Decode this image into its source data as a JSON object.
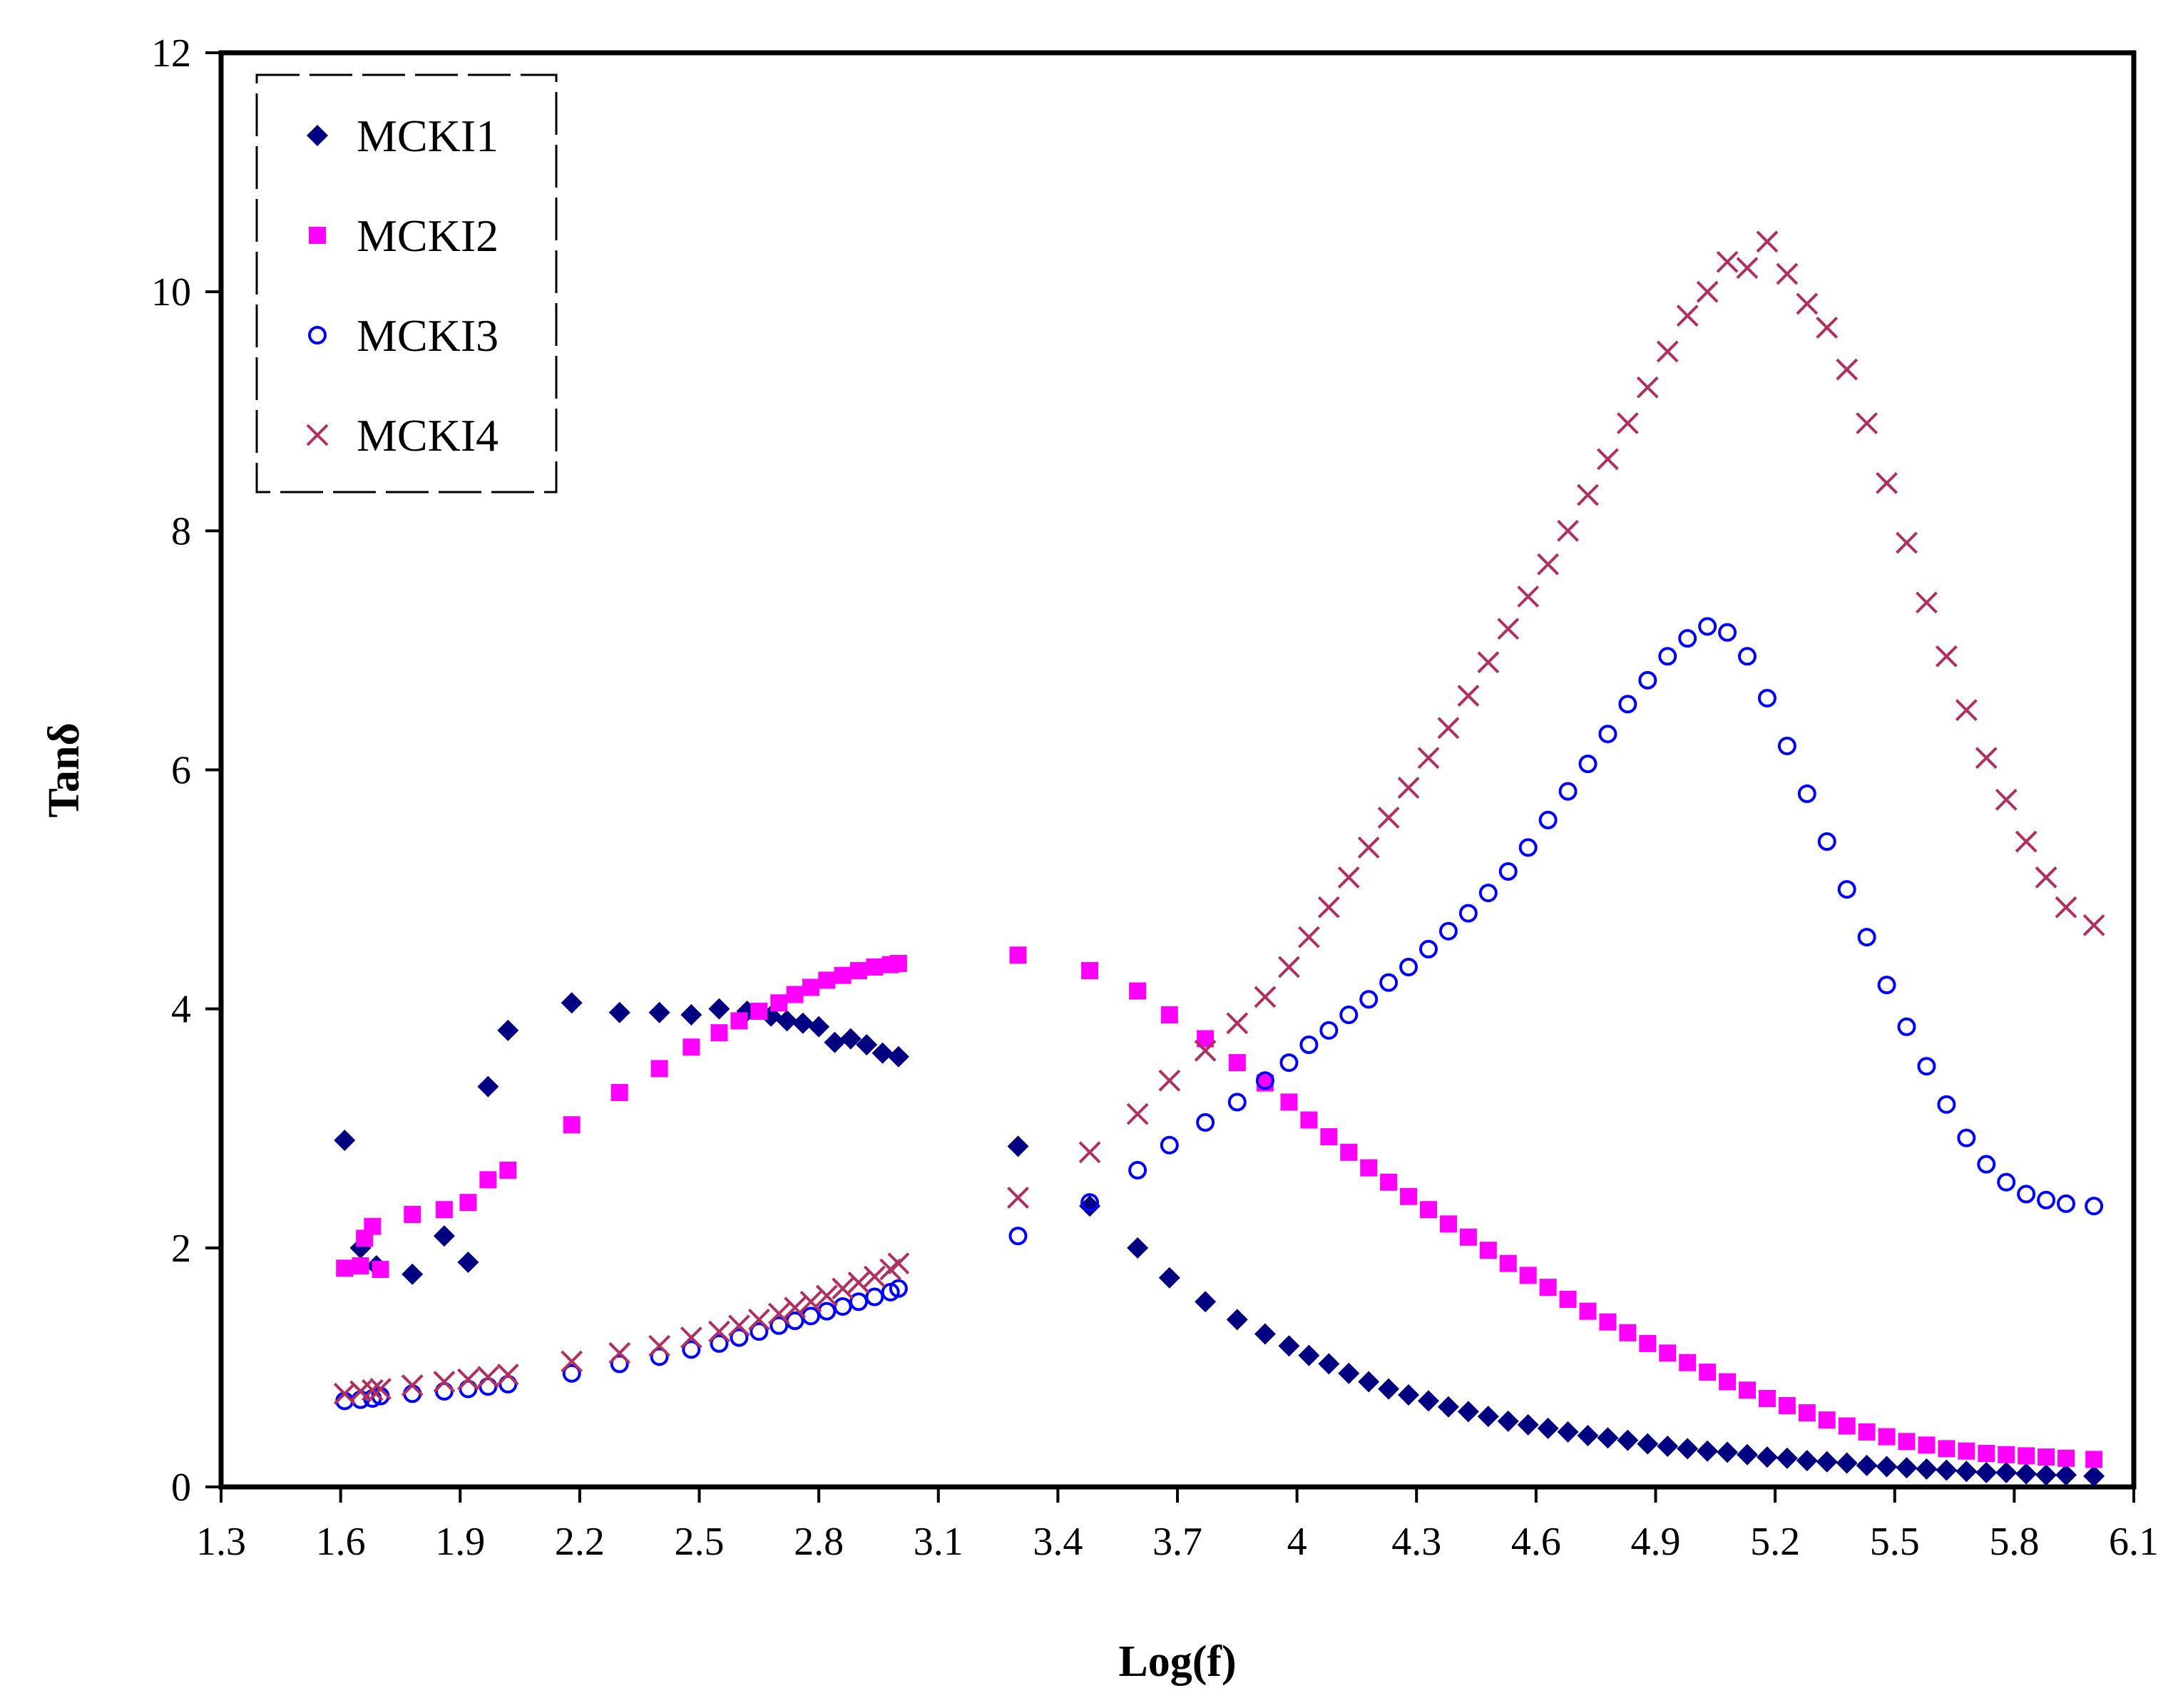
{
  "chart_data": {
    "type": "scatter",
    "title": "",
    "xlabel": "Log(f)",
    "ylabel": "Tanδ",
    "xlim": [
      1.3,
      6.1
    ],
    "ylim": [
      0,
      12
    ],
    "x_ticks": [
      1.3,
      1.6,
      1.9,
      2.2,
      2.5,
      2.8,
      3.1,
      3.4,
      3.7,
      4,
      4.3,
      4.6,
      4.9,
      5.2,
      5.5,
      5.8,
      6.1
    ],
    "x_tick_labels": [
      "1.3",
      "1.6",
      "1.9",
      "2.2",
      "2.5",
      "2.8",
      "3.1",
      "3.4",
      "3.7",
      "4",
      "4.3",
      "4.6",
      "4.9",
      "5.2",
      "5.5",
      "5.8",
      "6.1"
    ],
    "y_ticks": [
      0,
      2,
      4,
      6,
      8,
      10,
      12
    ],
    "y_tick_labels": [
      "0",
      "2",
      "4",
      "6",
      "8",
      "10",
      "12"
    ],
    "grid": false,
    "legend_position": "top-left",
    "series": [
      {
        "name": "MCKI1",
        "marker": "diamond",
        "color": "#000080",
        "points": [
          [
            1.61,
            2.9
          ],
          [
            1.65,
            2.0
          ],
          [
            1.69,
            1.85
          ],
          [
            1.78,
            1.78
          ],
          [
            1.86,
            2.1
          ],
          [
            1.92,
            1.88
          ],
          [
            1.97,
            3.35
          ],
          [
            2.02,
            3.82
          ],
          [
            2.18,
            4.05
          ],
          [
            2.3,
            3.97
          ],
          [
            2.4,
            3.97
          ],
          [
            2.48,
            3.95
          ],
          [
            2.55,
            4.0
          ],
          [
            2.62,
            3.98
          ],
          [
            2.68,
            3.94
          ],
          [
            2.72,
            3.9
          ],
          [
            2.76,
            3.88
          ],
          [
            2.8,
            3.85
          ],
          [
            2.84,
            3.72
          ],
          [
            2.88,
            3.75
          ],
          [
            2.92,
            3.7
          ],
          [
            2.96,
            3.63
          ],
          [
            3.0,
            3.6
          ],
          [
            3.3,
            2.85
          ],
          [
            3.48,
            2.35
          ],
          [
            3.6,
            2.0
          ],
          [
            3.68,
            1.75
          ],
          [
            3.77,
            1.55
          ],
          [
            3.85,
            1.4
          ],
          [
            3.92,
            1.28
          ],
          [
            3.98,
            1.18
          ],
          [
            4.03,
            1.1
          ],
          [
            4.08,
            1.03
          ],
          [
            4.13,
            0.95
          ],
          [
            4.18,
            0.88
          ],
          [
            4.23,
            0.82
          ],
          [
            4.28,
            0.77
          ],
          [
            4.33,
            0.72
          ],
          [
            4.38,
            0.67
          ],
          [
            4.43,
            0.63
          ],
          [
            4.48,
            0.59
          ],
          [
            4.53,
            0.55
          ],
          [
            4.58,
            0.52
          ],
          [
            4.63,
            0.49
          ],
          [
            4.68,
            0.46
          ],
          [
            4.73,
            0.43
          ],
          [
            4.78,
            0.41
          ],
          [
            4.83,
            0.39
          ],
          [
            4.88,
            0.36
          ],
          [
            4.93,
            0.34
          ],
          [
            4.98,
            0.32
          ],
          [
            5.03,
            0.3
          ],
          [
            5.08,
            0.29
          ],
          [
            5.13,
            0.27
          ],
          [
            5.18,
            0.25
          ],
          [
            5.23,
            0.24
          ],
          [
            5.28,
            0.22
          ],
          [
            5.33,
            0.21
          ],
          [
            5.38,
            0.2
          ],
          [
            5.43,
            0.18
          ],
          [
            5.48,
            0.17
          ],
          [
            5.53,
            0.16
          ],
          [
            5.58,
            0.15
          ],
          [
            5.63,
            0.14
          ],
          [
            5.68,
            0.13
          ],
          [
            5.73,
            0.12
          ],
          [
            5.78,
            0.12
          ],
          [
            5.83,
            0.11
          ],
          [
            5.88,
            0.1
          ],
          [
            5.93,
            0.1
          ],
          [
            6.0,
            0.09
          ]
        ]
      },
      {
        "name": "MCKI2",
        "marker": "square",
        "color": "#ff00ff",
        "points": [
          [
            1.61,
            1.83
          ],
          [
            1.65,
            1.85
          ],
          [
            1.66,
            2.08
          ],
          [
            1.68,
            2.18
          ],
          [
            1.7,
            1.82
          ],
          [
            1.78,
            2.28
          ],
          [
            1.86,
            2.32
          ],
          [
            1.92,
            2.38
          ],
          [
            1.97,
            2.57
          ],
          [
            2.02,
            2.65
          ],
          [
            2.18,
            3.03
          ],
          [
            2.3,
            3.3
          ],
          [
            2.4,
            3.5
          ],
          [
            2.48,
            3.68
          ],
          [
            2.55,
            3.8
          ],
          [
            2.6,
            3.9
          ],
          [
            2.65,
            3.98
          ],
          [
            2.7,
            4.05
          ],
          [
            2.74,
            4.12
          ],
          [
            2.78,
            4.18
          ],
          [
            2.82,
            4.24
          ],
          [
            2.86,
            4.28
          ],
          [
            2.9,
            4.32
          ],
          [
            2.94,
            4.35
          ],
          [
            2.98,
            4.37
          ],
          [
            3.0,
            4.38
          ],
          [
            3.3,
            4.45
          ],
          [
            3.48,
            4.32
          ],
          [
            3.6,
            4.15
          ],
          [
            3.68,
            3.95
          ],
          [
            3.77,
            3.75
          ],
          [
            3.85,
            3.55
          ],
          [
            3.92,
            3.38
          ],
          [
            3.98,
            3.22
          ],
          [
            4.03,
            3.07
          ],
          [
            4.08,
            2.93
          ],
          [
            4.13,
            2.8
          ],
          [
            4.18,
            2.67
          ],
          [
            4.23,
            2.55
          ],
          [
            4.28,
            2.43
          ],
          [
            4.33,
            2.32
          ],
          [
            4.38,
            2.2
          ],
          [
            4.43,
            2.09
          ],
          [
            4.48,
            1.98
          ],
          [
            4.53,
            1.87
          ],
          [
            4.58,
            1.77
          ],
          [
            4.63,
            1.67
          ],
          [
            4.68,
            1.57
          ],
          [
            4.73,
            1.47
          ],
          [
            4.78,
            1.38
          ],
          [
            4.83,
            1.29
          ],
          [
            4.88,
            1.2
          ],
          [
            4.93,
            1.12
          ],
          [
            4.98,
            1.04
          ],
          [
            5.03,
            0.96
          ],
          [
            5.08,
            0.88
          ],
          [
            5.13,
            0.81
          ],
          [
            5.18,
            0.74
          ],
          [
            5.23,
            0.68
          ],
          [
            5.28,
            0.62
          ],
          [
            5.33,
            0.56
          ],
          [
            5.38,
            0.51
          ],
          [
            5.43,
            0.46
          ],
          [
            5.48,
            0.42
          ],
          [
            5.53,
            0.38
          ],
          [
            5.58,
            0.35
          ],
          [
            5.63,
            0.32
          ],
          [
            5.68,
            0.3
          ],
          [
            5.73,
            0.28
          ],
          [
            5.78,
            0.27
          ],
          [
            5.83,
            0.26
          ],
          [
            5.88,
            0.25
          ],
          [
            5.93,
            0.24
          ],
          [
            6.0,
            0.23
          ]
        ]
      },
      {
        "name": "MCKI3",
        "marker": "circle",
        "color": "#0000ff",
        "points": [
          [
            1.61,
            0.72
          ],
          [
            1.65,
            0.73
          ],
          [
            1.68,
            0.74
          ],
          [
            1.7,
            0.76
          ],
          [
            1.78,
            0.78
          ],
          [
            1.86,
            0.8
          ],
          [
            1.92,
            0.82
          ],
          [
            1.97,
            0.84
          ],
          [
            2.02,
            0.86
          ],
          [
            2.18,
            0.95
          ],
          [
            2.3,
            1.03
          ],
          [
            2.4,
            1.09
          ],
          [
            2.48,
            1.15
          ],
          [
            2.55,
            1.2
          ],
          [
            2.6,
            1.25
          ],
          [
            2.65,
            1.3
          ],
          [
            2.7,
            1.35
          ],
          [
            2.74,
            1.39
          ],
          [
            2.78,
            1.43
          ],
          [
            2.82,
            1.47
          ],
          [
            2.86,
            1.51
          ],
          [
            2.9,
            1.55
          ],
          [
            2.94,
            1.59
          ],
          [
            2.98,
            1.63
          ],
          [
            3.0,
            1.66
          ],
          [
            3.3,
            2.1
          ],
          [
            3.48,
            2.38
          ],
          [
            3.6,
            2.65
          ],
          [
            3.68,
            2.86
          ],
          [
            3.77,
            3.05
          ],
          [
            3.85,
            3.22
          ],
          [
            3.92,
            3.4
          ],
          [
            3.98,
            3.55
          ],
          [
            4.03,
            3.7
          ],
          [
            4.08,
            3.82
          ],
          [
            4.13,
            3.95
          ],
          [
            4.18,
            4.08
          ],
          [
            4.23,
            4.22
          ],
          [
            4.28,
            4.35
          ],
          [
            4.33,
            4.5
          ],
          [
            4.38,
            4.65
          ],
          [
            4.43,
            4.8
          ],
          [
            4.48,
            4.97
          ],
          [
            4.53,
            5.15
          ],
          [
            4.58,
            5.35
          ],
          [
            4.63,
            5.58
          ],
          [
            4.68,
            5.82
          ],
          [
            4.73,
            6.05
          ],
          [
            4.78,
            6.3
          ],
          [
            4.83,
            6.55
          ],
          [
            4.88,
            6.75
          ],
          [
            4.93,
            6.95
          ],
          [
            4.98,
            7.1
          ],
          [
            5.03,
            7.2
          ],
          [
            5.08,
            7.15
          ],
          [
            5.13,
            6.95
          ],
          [
            5.18,
            6.6
          ],
          [
            5.23,
            6.2
          ],
          [
            5.28,
            5.8
          ],
          [
            5.33,
            5.4
          ],
          [
            5.38,
            5.0
          ],
          [
            5.43,
            4.6
          ],
          [
            5.48,
            4.2
          ],
          [
            5.53,
            3.85
          ],
          [
            5.58,
            3.52
          ],
          [
            5.63,
            3.2
          ],
          [
            5.68,
            2.92
          ],
          [
            5.73,
            2.7
          ],
          [
            5.78,
            2.55
          ],
          [
            5.83,
            2.45
          ],
          [
            5.88,
            2.4
          ],
          [
            5.93,
            2.37
          ],
          [
            6.0,
            2.35
          ]
        ]
      },
      {
        "name": "MCKI4",
        "marker": "cross",
        "color": "#b03060",
        "points": [
          [
            1.61,
            0.78
          ],
          [
            1.65,
            0.8
          ],
          [
            1.68,
            0.81
          ],
          [
            1.7,
            0.82
          ],
          [
            1.78,
            0.85
          ],
          [
            1.86,
            0.88
          ],
          [
            1.92,
            0.9
          ],
          [
            1.97,
            0.92
          ],
          [
            2.02,
            0.94
          ],
          [
            2.18,
            1.05
          ],
          [
            2.3,
            1.12
          ],
          [
            2.4,
            1.18
          ],
          [
            2.48,
            1.25
          ],
          [
            2.55,
            1.3
          ],
          [
            2.6,
            1.35
          ],
          [
            2.65,
            1.4
          ],
          [
            2.7,
            1.45
          ],
          [
            2.74,
            1.5
          ],
          [
            2.78,
            1.55
          ],
          [
            2.82,
            1.6
          ],
          [
            2.86,
            1.66
          ],
          [
            2.9,
            1.71
          ],
          [
            2.94,
            1.76
          ],
          [
            2.98,
            1.82
          ],
          [
            3.0,
            1.87
          ],
          [
            3.3,
            2.42
          ],
          [
            3.48,
            2.8
          ],
          [
            3.6,
            3.12
          ],
          [
            3.68,
            3.4
          ],
          [
            3.77,
            3.65
          ],
          [
            3.85,
            3.88
          ],
          [
            3.92,
            4.1
          ],
          [
            3.98,
            4.35
          ],
          [
            4.03,
            4.6
          ],
          [
            4.08,
            4.85
          ],
          [
            4.13,
            5.1
          ],
          [
            4.18,
            5.35
          ],
          [
            4.23,
            5.6
          ],
          [
            4.28,
            5.85
          ],
          [
            4.33,
            6.1
          ],
          [
            4.38,
            6.35
          ],
          [
            4.43,
            6.62
          ],
          [
            4.48,
            6.9
          ],
          [
            4.53,
            7.18
          ],
          [
            4.58,
            7.45
          ],
          [
            4.63,
            7.72
          ],
          [
            4.68,
            8.0
          ],
          [
            4.73,
            8.3
          ],
          [
            4.78,
            8.6
          ],
          [
            4.83,
            8.9
          ],
          [
            4.88,
            9.2
          ],
          [
            4.93,
            9.5
          ],
          [
            4.98,
            9.8
          ],
          [
            5.03,
            10.0
          ],
          [
            5.08,
            10.25
          ],
          [
            5.13,
            10.2
          ],
          [
            5.18,
            10.42
          ],
          [
            5.23,
            10.15
          ],
          [
            5.28,
            9.9
          ],
          [
            5.33,
            9.7
          ],
          [
            5.38,
            9.35
          ],
          [
            5.43,
            8.9
          ],
          [
            5.48,
            8.4
          ],
          [
            5.53,
            7.9
          ],
          [
            5.58,
            7.4
          ],
          [
            5.63,
            6.95
          ],
          [
            5.68,
            6.5
          ],
          [
            5.73,
            6.1
          ],
          [
            5.78,
            5.75
          ],
          [
            5.83,
            5.4
          ],
          [
            5.88,
            5.1
          ],
          [
            5.93,
            4.85
          ],
          [
            6.0,
            4.7
          ]
        ]
      }
    ]
  }
}
